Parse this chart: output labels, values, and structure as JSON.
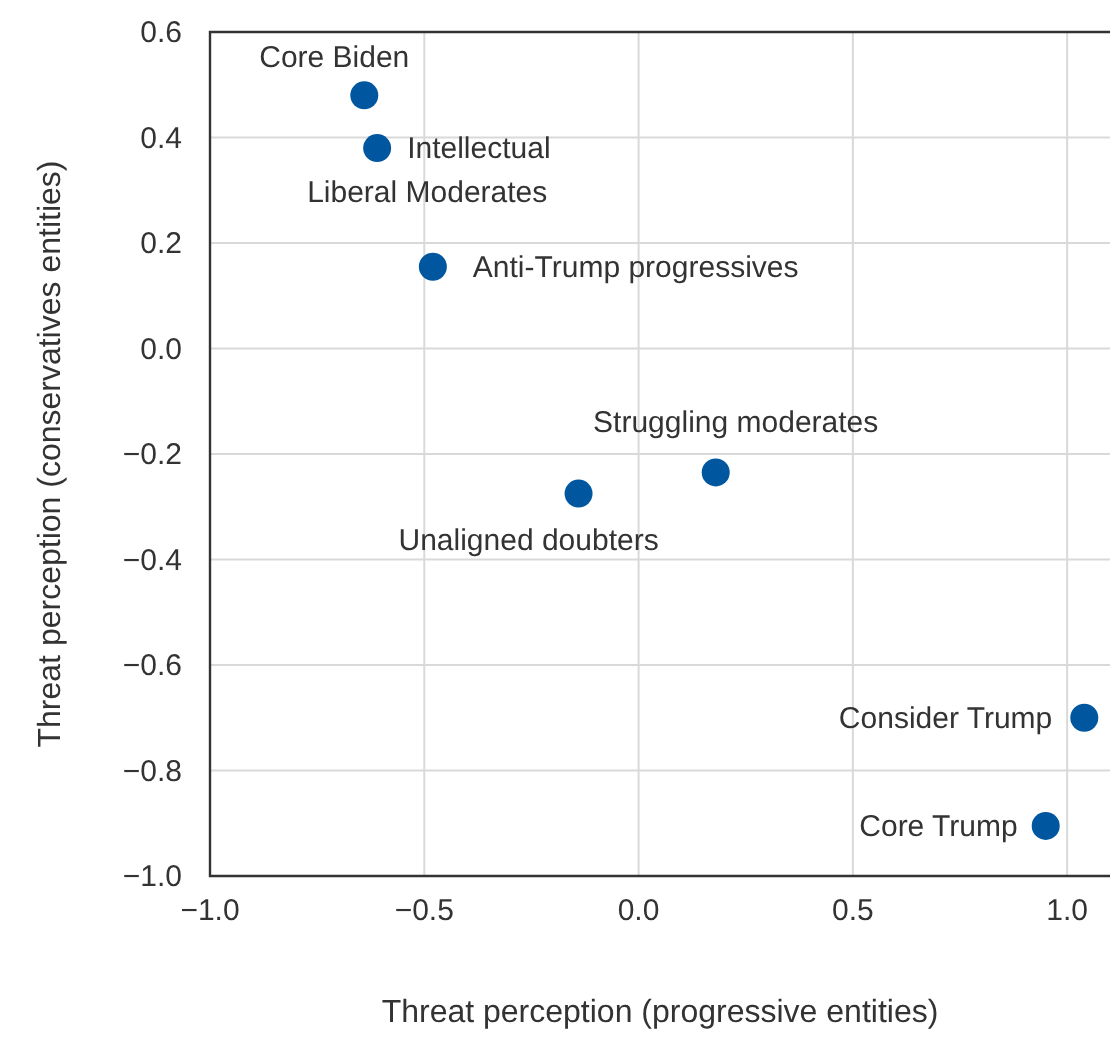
{
  "chart_data": {
    "type": "scatter",
    "xlabel": "Threat perception (progressive entities)",
    "ylabel": "Threat perception (conservatives entities)",
    "x": [
      -0.64,
      -0.61,
      -0.48,
      -0.14,
      0.18,
      1.04,
      0.95
    ],
    "series": [
      {
        "color": "#0057a0",
        "values": [
          0.48,
          0.38,
          0.155,
          -0.275,
          -0.235,
          -0.7,
          -0.905
        ]
      }
    ],
    "annotations": [
      {
        "text": "Core Biden",
        "x": -0.64,
        "y": 0.48
      },
      {
        "text": "Intellectual\nLiberal Moderates",
        "x": -0.61,
        "y": 0.38
      },
      {
        "text": "Anti-Trump progressives",
        "x": -0.48,
        "y": 0.155
      },
      {
        "text": "Unaligned doubters",
        "x": -0.14,
        "y": -0.275
      },
      {
        "text": "Struggling moderates",
        "x": 0.18,
        "y": -0.235
      },
      {
        "text": "Consider Trump",
        "x": 1.04,
        "y": -0.7
      },
      {
        "text": "Core Trump",
        "x": 0.95,
        "y": -0.905
      }
    ],
    "xlim": [
      -1.0,
      1.1
    ],
    "xticks": [
      {
        "value": -1,
        "label": "−1.0"
      },
      {
        "value": -0.5,
        "label": "−0.5"
      },
      {
        "value": 0,
        "label": "0.0"
      },
      {
        "value": 0.5,
        "label": "0.5"
      },
      {
        "value": 1,
        "label": "1.0"
      }
    ],
    "ylim": [
      -1.0,
      0.6
    ],
    "yticks": [
      {
        "value": -1,
        "label": "−1.0"
      },
      {
        "value": -0.8,
        "label": "−0.8"
      },
      {
        "value": -0.6,
        "label": "−0.6"
      },
      {
        "value": -0.4,
        "label": "−0.4"
      },
      {
        "value": -0.2,
        "label": "−0.2"
      },
      {
        "value": 0,
        "label": "0.0"
      },
      {
        "value": 0.2,
        "label": "0.2"
      },
      {
        "value": 0.4,
        "label": "0.4"
      },
      {
        "value": 0.6,
        "label": "0.6"
      }
    ],
    "grid": true,
    "marker": "circle"
  }
}
